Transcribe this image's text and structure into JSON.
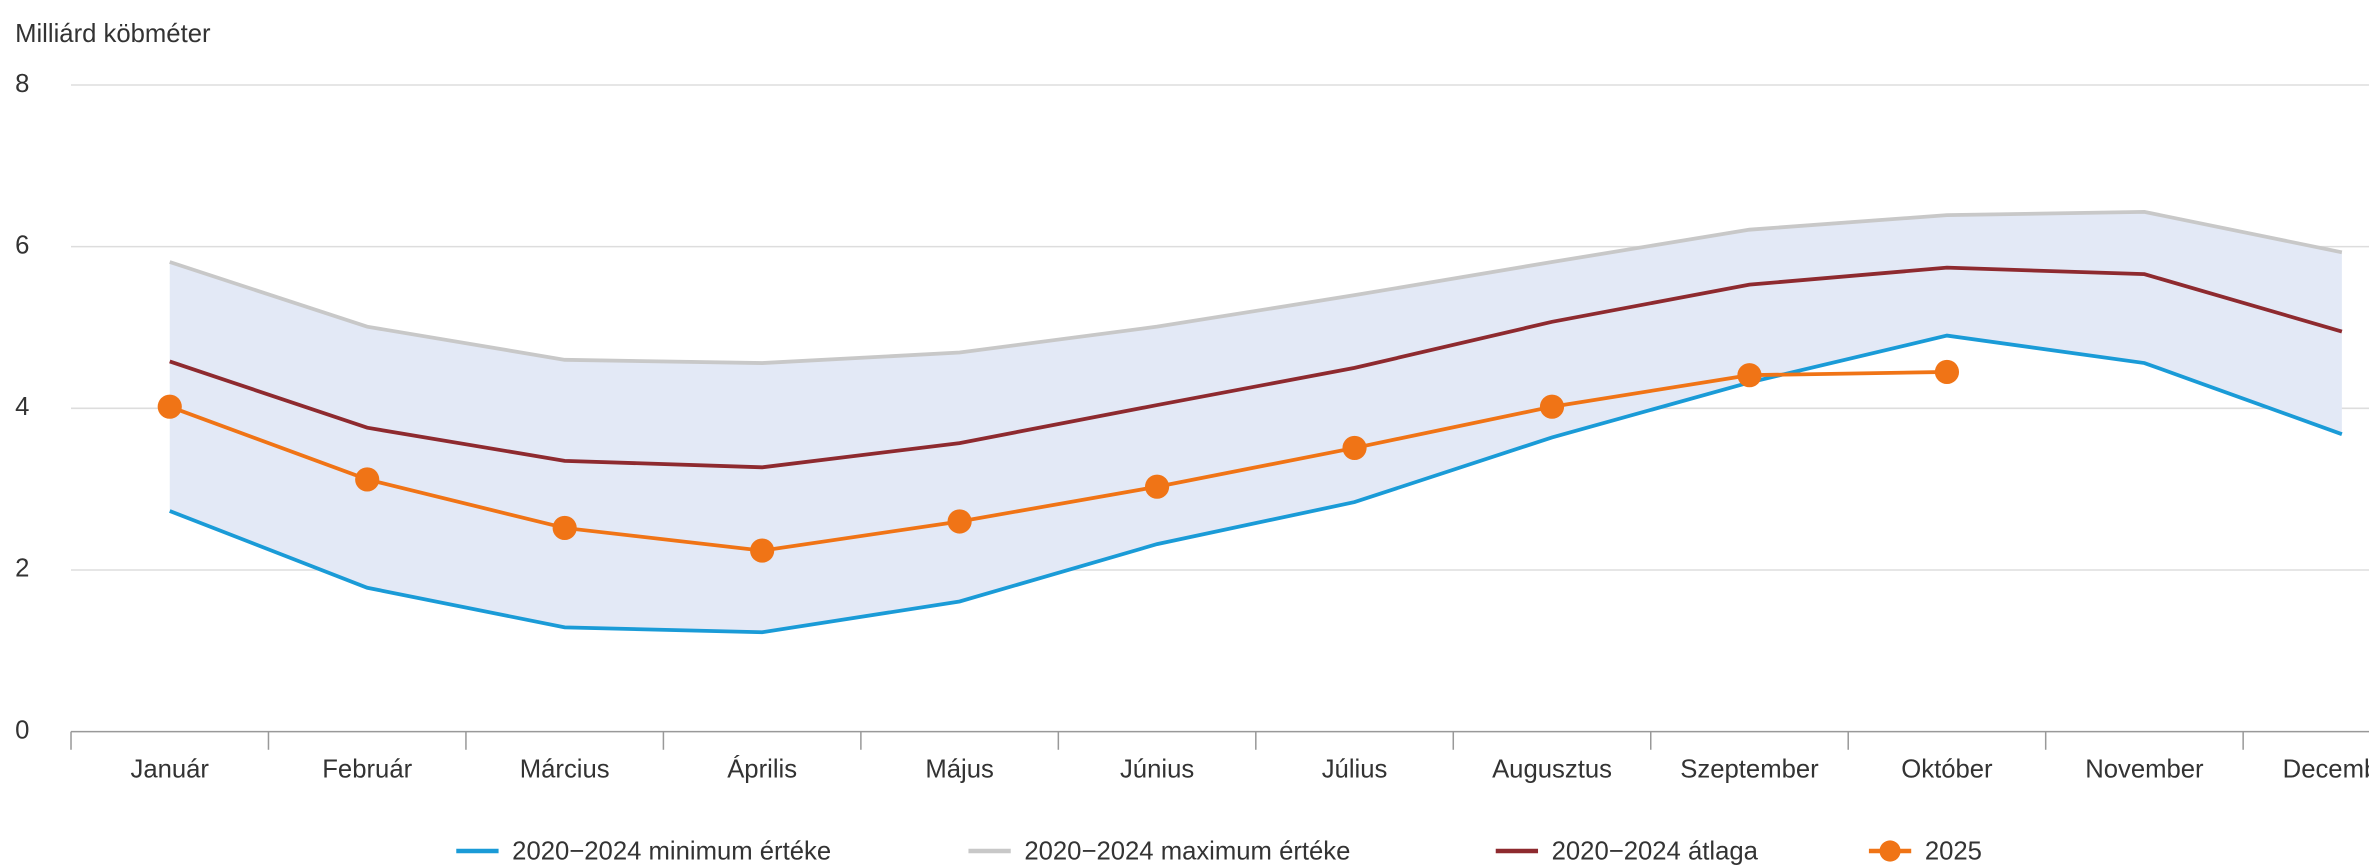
{
  "chart_data": {
    "type": "line",
    "ylabel": "Milliárd köbméter",
    "categories": [
      "Január",
      "Február",
      "Március",
      "Április",
      "Május",
      "Június",
      "Július",
      "Augusztus",
      "Szeptember",
      "Október",
      "November",
      "December"
    ],
    "series": [
      {
        "name": "2020−2024 minimum értéke",
        "color": "#1a9bd7",
        "values": [
          2.73,
          1.78,
          1.29,
          1.23,
          1.61,
          2.32,
          2.84,
          3.64,
          4.32,
          4.9,
          4.56,
          3.68
        ]
      },
      {
        "name": "2020−2024 maximum értéke",
        "color": "#c8c8c8",
        "values": [
          5.81,
          5.01,
          4.6,
          4.56,
          4.69,
          5.01,
          5.4,
          5.81,
          6.21,
          6.39,
          6.43,
          5.93
        ]
      },
      {
        "name": "2020−2024 átlaga",
        "color": "#8e2a2f",
        "values": [
          4.58,
          3.76,
          3.35,
          3.27,
          3.57,
          4.04,
          4.5,
          5.07,
          5.53,
          5.74,
          5.66,
          4.95
        ]
      },
      {
        "name": "2025",
        "color": "#f07416",
        "markers": true,
        "values": [
          4.02,
          3.12,
          2.52,
          2.24,
          2.6,
          3.03,
          3.51,
          4.02,
          4.41,
          4.45,
          null,
          null
        ]
      }
    ],
    "band_color": "#e3e9f6",
    "ylim": [
      0,
      8
    ],
    "yticks": [
      0,
      2,
      4,
      6,
      8
    ],
    "grid": true,
    "legend": "bottom"
  }
}
